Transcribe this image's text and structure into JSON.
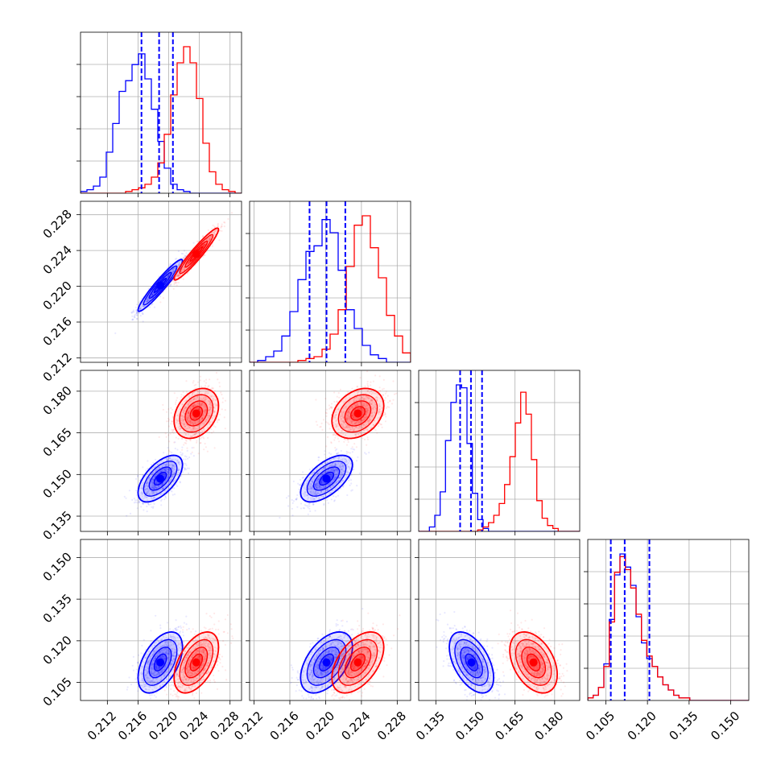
{
  "chart_data": {
    "type": "corner",
    "title": "",
    "grid": true,
    "colors": {
      "blue": "#0000ff",
      "red": "#ff0000",
      "grid": "#b0b0b0"
    },
    "params": [
      {
        "xlim": [
          0.2085,
          0.2295
        ],
        "ylim": [
          0.2115,
          0.2295
        ],
        "ticks": [
          0.212,
          0.216,
          0.22,
          0.224,
          0.228
        ],
        "tick_labels": [
          "0.212",
          "0.216",
          "0.220",
          "0.224",
          "0.228"
        ]
      },
      {
        "xlim": [
          0.2115,
          0.2295
        ],
        "ylim": [
          0.2115,
          0.2295
        ],
        "ticks": [
          0.212,
          0.216,
          0.22,
          0.224,
          0.228
        ],
        "tick_labels": [
          "0.212",
          "0.216",
          "0.220",
          "0.224",
          "0.228"
        ]
      },
      {
        "xlim": [
          0.1285,
          0.1895
        ],
        "ylim": [
          0.1295,
          0.1875
        ],
        "ticks": [
          0.135,
          0.15,
          0.165,
          0.18
        ],
        "tick_labels": [
          "0.135",
          "0.150",
          "0.165",
          "0.180"
        ]
      },
      {
        "xlim": [
          0.0985,
          0.1565
        ],
        "ylim": [
          0.0985,
          0.1565
        ],
        "ticks": [
          0.105,
          0.12,
          0.135,
          0.15
        ],
        "tick_labels": [
          "0.105",
          "0.120",
          "0.135",
          "0.150"
        ]
      }
    ],
    "series": [
      {
        "color": "blue",
        "mean": [
          0.2189,
          0.2201,
          0.1485,
          0.1122
        ],
        "sd": [
          0.00145,
          0.00145,
          0.0042,
          0.0055
        ],
        "correlations": [
          [
            1,
            0.95,
            0.6,
            0.5
          ],
          [
            0.95,
            1,
            0.6,
            0.5
          ],
          [
            0.6,
            0.6,
            1,
            -0.5
          ],
          [
            0.5,
            0.5,
            -0.5,
            1
          ]
        ],
        "quantiles": [
          [
            0.21645,
            0.21875,
            0.22055
          ],
          [
            0.2182,
            0.2201,
            0.2222
          ],
          [
            0.1442,
            0.1483,
            0.1525
          ],
          [
            0.1068,
            0.1118,
            0.1207
          ]
        ]
      },
      {
        "color": "red",
        "mean": [
          0.2236,
          0.2236,
          0.172,
          0.1122
        ],
        "sd": [
          0.00145,
          0.00145,
          0.0045,
          0.0055
        ],
        "correlations": [
          [
            1,
            0.95,
            0.3,
            0.5
          ],
          [
            0.95,
            1,
            0.3,
            0.5
          ],
          [
            0.3,
            0.3,
            1,
            -0.4
          ],
          [
            0.5,
            0.5,
            -0.4,
            1
          ]
        ],
        "quantiles": []
      }
    ],
    "hist_counts": {
      "blue": [
        [
          1,
          2,
          4,
          9,
          23,
          39,
          57,
          63,
          72,
          78,
          64,
          47,
          29,
          14,
          5,
          2,
          1,
          0,
          0,
          0,
          0,
          0,
          0,
          0,
          0
        ],
        [
          0,
          1,
          3,
          6,
          14,
          27,
          44,
          59,
          62,
          76,
          69,
          49,
          28,
          18,
          9,
          4,
          2,
          0,
          0,
          0
        ],
        [
          0,
          0,
          3,
          11,
          27,
          62,
          88,
          100,
          98,
          60,
          26,
          8,
          2,
          0,
          0,
          0,
          0,
          0,
          0,
          0,
          0,
          0,
          0,
          0,
          0,
          0,
          0,
          0,
          0,
          0
        ],
        [
          1,
          2,
          5,
          14,
          31,
          48,
          56,
          51,
          44,
          32,
          22,
          16,
          13,
          9,
          6,
          4,
          2,
          1,
          1,
          0,
          0,
          0,
          0,
          0,
          0,
          0,
          0,
          0,
          0,
          0
        ]
      ],
      "red": [
        [
          0,
          0,
          0,
          0,
          0,
          0,
          0,
          1,
          2,
          3,
          5,
          9,
          17,
          33,
          55,
          73,
          82,
          73,
          53,
          28,
          12,
          5,
          2,
          1,
          0
        ],
        [
          0,
          0,
          0,
          0,
          0,
          0,
          1,
          2,
          3,
          7,
          15,
          28,
          51,
          73,
          78,
          61,
          45,
          25,
          14,
          5
        ],
        [
          0,
          0,
          0,
          0,
          0,
          0,
          0,
          0,
          0,
          0,
          0,
          1,
          3,
          6,
          11,
          19,
          32,
          51,
          74,
          95,
          80,
          49,
          21,
          9,
          4,
          2,
          0,
          0,
          0,
          0
        ],
        [
          1,
          2,
          5,
          13,
          30,
          49,
          55,
          50,
          43,
          33,
          23,
          17,
          13,
          9,
          6,
          4,
          2,
          1,
          1,
          0,
          0,
          0,
          0,
          0,
          0,
          0,
          0,
          0,
          0,
          0
        ]
      ]
    }
  }
}
